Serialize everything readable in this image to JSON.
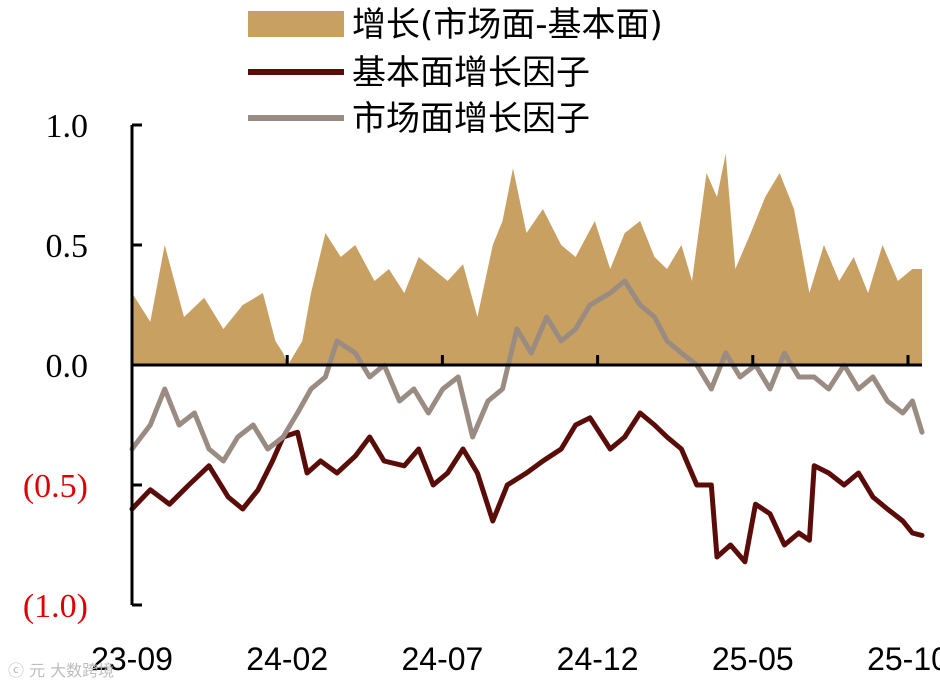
{
  "chart_data": {
    "type": "line",
    "x_tick_labels": [
      "23-09",
      "24-02",
      "24-07",
      "24-12",
      "25-05",
      "25-10"
    ],
    "y_tick_labels": [
      "1.0",
      "0.5",
      "0.0",
      "(0.5)",
      "(1.0)"
    ],
    "y_ticks": [
      1.0,
      0.5,
      0.0,
      -0.5,
      -1.0
    ],
    "ylim": [
      -1.0,
      1.0
    ],
    "x_start": "2023-09-01",
    "x_end": "2025-11-30",
    "series": [
      {
        "name": "增长(市场面-基本面)",
        "type": "area",
        "color": "#c8a062",
        "points": [
          [
            "2023-09-01",
            0.3
          ],
          [
            "2023-09-20",
            0.18
          ],
          [
            "2023-10-05",
            0.5
          ],
          [
            "2023-10-25",
            0.2
          ],
          [
            "2023-11-15",
            0.28
          ],
          [
            "2023-12-05",
            0.15
          ],
          [
            "2023-12-25",
            0.25
          ],
          [
            "2024-01-15",
            0.3
          ],
          [
            "2024-01-28",
            0.1
          ],
          [
            "2024-02-05",
            0.05
          ],
          [
            "2024-02-10",
            0.0
          ],
          [
            "2024-02-25",
            0.1
          ],
          [
            "2024-03-05",
            0.3
          ],
          [
            "2024-03-20",
            0.55
          ],
          [
            "2024-04-05",
            0.45
          ],
          [
            "2024-04-20",
            0.5
          ],
          [
            "2024-05-10",
            0.35
          ],
          [
            "2024-05-25",
            0.4
          ],
          [
            "2024-06-10",
            0.3
          ],
          [
            "2024-06-25",
            0.45
          ],
          [
            "2024-07-10",
            0.4
          ],
          [
            "2024-07-25",
            0.35
          ],
          [
            "2024-08-10",
            0.42
          ],
          [
            "2024-08-25",
            0.2
          ],
          [
            "2024-09-10",
            0.5
          ],
          [
            "2024-09-20",
            0.6
          ],
          [
            "2024-10-01",
            0.82
          ],
          [
            "2024-10-15",
            0.55
          ],
          [
            "2024-11-01",
            0.65
          ],
          [
            "2024-11-20",
            0.5
          ],
          [
            "2024-12-05",
            0.45
          ],
          [
            "2024-12-25",
            0.6
          ],
          [
            "2025-01-10",
            0.4
          ],
          [
            "2025-01-25",
            0.55
          ],
          [
            "2025-02-10",
            0.6
          ],
          [
            "2025-02-25",
            0.45
          ],
          [
            "2025-03-10",
            0.4
          ],
          [
            "2025-03-25",
            0.5
          ],
          [
            "2025-04-05",
            0.35
          ],
          [
            "2025-04-20",
            0.8
          ],
          [
            "2025-05-01",
            0.7
          ],
          [
            "2025-05-10",
            0.88
          ],
          [
            "2025-05-20",
            0.4
          ],
          [
            "2025-06-05",
            0.55
          ],
          [
            "2025-06-20",
            0.7
          ],
          [
            "2025-07-05",
            0.8
          ],
          [
            "2025-07-20",
            0.65
          ],
          [
            "2025-08-05",
            0.3
          ],
          [
            "2025-08-20",
            0.5
          ],
          [
            "2025-09-05",
            0.35
          ],
          [
            "2025-09-20",
            0.45
          ],
          [
            "2025-10-05",
            0.3
          ],
          [
            "2025-10-20",
            0.5
          ],
          [
            "2025-11-05",
            0.35
          ],
          [
            "2025-11-20",
            0.4
          ],
          [
            "2025-11-30",
            0.4
          ]
        ]
      },
      {
        "name": "基本面增长因子",
        "type": "line",
        "color": "#5a0d08",
        "points": [
          [
            "2023-09-01",
            -0.6
          ],
          [
            "2023-09-20",
            -0.52
          ],
          [
            "2023-10-10",
            -0.58
          ],
          [
            "2023-10-30",
            -0.5
          ],
          [
            "2023-11-20",
            -0.42
          ],
          [
            "2023-12-10",
            -0.55
          ],
          [
            "2023-12-25",
            -0.6
          ],
          [
            "2024-01-10",
            -0.52
          ],
          [
            "2024-01-25",
            -0.4
          ],
          [
            "2024-02-05",
            -0.3
          ],
          [
            "2024-02-20",
            -0.28
          ],
          [
            "2024-03-01",
            -0.45
          ],
          [
            "2024-03-15",
            -0.4
          ],
          [
            "2024-04-01",
            -0.45
          ],
          [
            "2024-04-20",
            -0.38
          ],
          [
            "2024-05-05",
            -0.3
          ],
          [
            "2024-05-20",
            -0.4
          ],
          [
            "2024-06-10",
            -0.42
          ],
          [
            "2024-06-25",
            -0.35
          ],
          [
            "2024-07-10",
            -0.5
          ],
          [
            "2024-07-25",
            -0.45
          ],
          [
            "2024-08-10",
            -0.35
          ],
          [
            "2024-08-25",
            -0.45
          ],
          [
            "2024-09-10",
            -0.65
          ],
          [
            "2024-09-25",
            -0.5
          ],
          [
            "2024-10-15",
            -0.45
          ],
          [
            "2024-11-01",
            -0.4
          ],
          [
            "2024-11-20",
            -0.35
          ],
          [
            "2024-12-05",
            -0.25
          ],
          [
            "2024-12-20",
            -0.22
          ],
          [
            "2025-01-10",
            -0.35
          ],
          [
            "2025-01-25",
            -0.3
          ],
          [
            "2025-02-10",
            -0.2
          ],
          [
            "2025-02-25",
            -0.25
          ],
          [
            "2025-03-10",
            -0.3
          ],
          [
            "2025-03-25",
            -0.35
          ],
          [
            "2025-04-10",
            -0.5
          ],
          [
            "2025-04-25",
            -0.5
          ],
          [
            "2025-05-01",
            -0.8
          ],
          [
            "2025-05-15",
            -0.75
          ],
          [
            "2025-05-30",
            -0.82
          ],
          [
            "2025-06-10",
            -0.58
          ],
          [
            "2025-06-25",
            -0.62
          ],
          [
            "2025-07-10",
            -0.75
          ],
          [
            "2025-07-25",
            -0.7
          ],
          [
            "2025-08-05",
            -0.73
          ],
          [
            "2025-08-10",
            -0.42
          ],
          [
            "2025-08-25",
            -0.45
          ],
          [
            "2025-09-10",
            -0.5
          ],
          [
            "2025-09-25",
            -0.45
          ],
          [
            "2025-10-10",
            -0.55
          ],
          [
            "2025-10-25",
            -0.6
          ],
          [
            "2025-11-10",
            -0.65
          ],
          [
            "2025-11-20",
            -0.7
          ],
          [
            "2025-11-30",
            -0.71
          ]
        ]
      },
      {
        "name": "市场面增长因子",
        "type": "line",
        "color": "#9a8c82",
        "points": [
          [
            "2023-09-01",
            -0.35
          ],
          [
            "2023-09-20",
            -0.25
          ],
          [
            "2023-10-05",
            -0.1
          ],
          [
            "2023-10-20",
            -0.25
          ],
          [
            "2023-11-05",
            -0.2
          ],
          [
            "2023-11-20",
            -0.35
          ],
          [
            "2023-12-05",
            -0.4
          ],
          [
            "2023-12-20",
            -0.3
          ],
          [
            "2024-01-05",
            -0.25
          ],
          [
            "2024-01-20",
            -0.35
          ],
          [
            "2024-02-05",
            -0.3
          ],
          [
            "2024-02-20",
            -0.2
          ],
          [
            "2024-03-05",
            -0.1
          ],
          [
            "2024-03-20",
            -0.05
          ],
          [
            "2024-04-01",
            0.1
          ],
          [
            "2024-04-20",
            0.05
          ],
          [
            "2024-05-05",
            -0.05
          ],
          [
            "2024-05-20",
            0.0
          ],
          [
            "2024-06-05",
            -0.15
          ],
          [
            "2024-06-20",
            -0.1
          ],
          [
            "2024-07-05",
            -0.2
          ],
          [
            "2024-07-20",
            -0.1
          ],
          [
            "2024-08-05",
            -0.05
          ],
          [
            "2024-08-20",
            -0.3
          ],
          [
            "2024-09-05",
            -0.15
          ],
          [
            "2024-09-20",
            -0.1
          ],
          [
            "2024-10-05",
            0.15
          ],
          [
            "2024-10-20",
            0.05
          ],
          [
            "2024-11-05",
            0.2
          ],
          [
            "2024-11-20",
            0.1
          ],
          [
            "2024-12-05",
            0.15
          ],
          [
            "2024-12-20",
            0.25
          ],
          [
            "2025-01-10",
            0.3
          ],
          [
            "2025-01-25",
            0.35
          ],
          [
            "2025-02-10",
            0.25
          ],
          [
            "2025-02-25",
            0.2
          ],
          [
            "2025-03-10",
            0.1
          ],
          [
            "2025-03-25",
            0.05
          ],
          [
            "2025-04-10",
            0.0
          ],
          [
            "2025-04-25",
            -0.1
          ],
          [
            "2025-05-10",
            0.05
          ],
          [
            "2025-05-25",
            -0.05
          ],
          [
            "2025-06-10",
            0.0
          ],
          [
            "2025-06-25",
            -0.1
          ],
          [
            "2025-07-10",
            0.05
          ],
          [
            "2025-07-25",
            -0.05
          ],
          [
            "2025-08-10",
            -0.05
          ],
          [
            "2025-08-25",
            -0.1
          ],
          [
            "2025-09-10",
            0.0
          ],
          [
            "2025-09-25",
            -0.1
          ],
          [
            "2025-10-10",
            -0.05
          ],
          [
            "2025-10-25",
            -0.15
          ],
          [
            "2025-11-10",
            -0.2
          ],
          [
            "2025-11-20",
            -0.15
          ],
          [
            "2025-11-30",
            -0.28
          ]
        ]
      }
    ]
  },
  "watermark": "ⓒ 元 大数跨境"
}
